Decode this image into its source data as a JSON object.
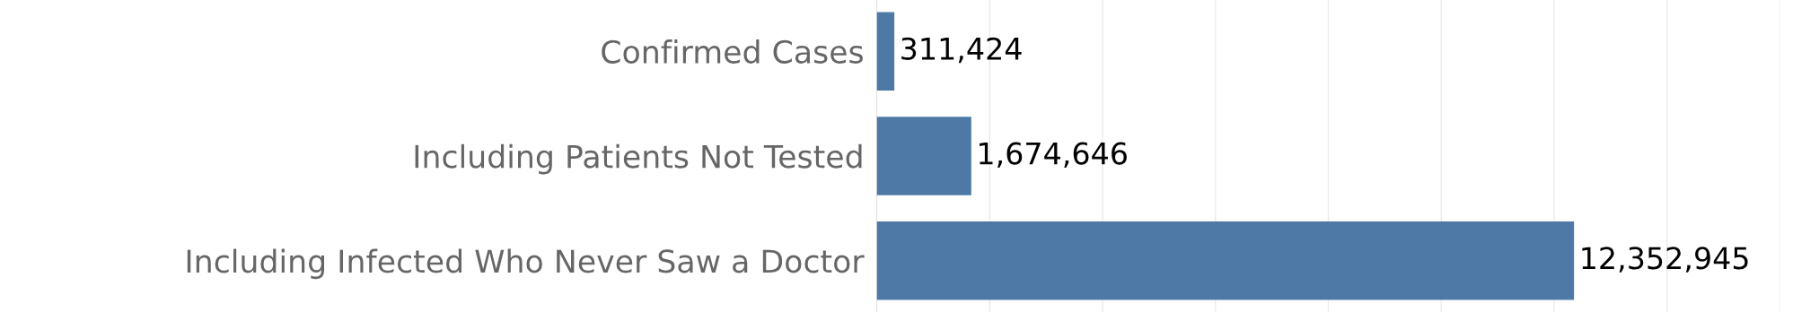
{
  "chart_data": {
    "type": "bar",
    "orientation": "horizontal",
    "categories": [
      "Confirmed Cases",
      "Including Patients Not Tested",
      "Including Infected Who Never Saw a Doctor"
    ],
    "values": [
      311424,
      1674646,
      12352945
    ],
    "value_labels": [
      "311,424",
      "1,674,646",
      "12,352,945"
    ],
    "color": "#4e79a7",
    "xlim": [
      0,
      16000000
    ],
    "xticks": [
      {
        "value": 2000000,
        "label": null
      },
      {
        "value": 4000000,
        "label": null
      },
      {
        "value": 6000000,
        "label": null
      },
      {
        "value": 8000000,
        "label": null
      },
      {
        "value": 10000000,
        "label": null
      },
      {
        "value": 12000000,
        "label": null
      },
      {
        "value": 14000000,
        "label": null
      },
      {
        "value": 16000000,
        "label": null
      }
    ],
    "grid": "x"
  }
}
